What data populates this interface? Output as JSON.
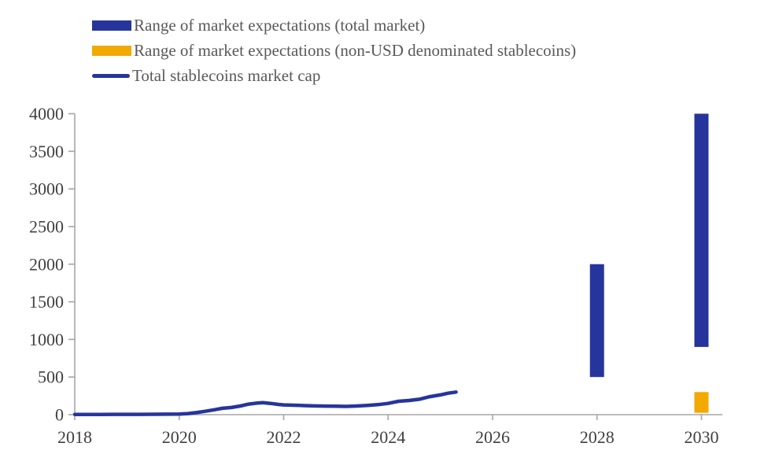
{
  "legend": {
    "items": [
      {
        "label": "Range of market expectations (total market)",
        "swatch": "bar",
        "color": "#26359c"
      },
      {
        "label": "Range of market expectations (non-USD denominated stablecoins)",
        "swatch": "bar",
        "color": "#f2a900"
      },
      {
        "label": "Total stablecoins market cap",
        "swatch": "line",
        "color": "#26359c"
      }
    ]
  },
  "colors": {
    "axis": "#a6a6a6",
    "tick_label": "#404040",
    "legend_text": "#595959",
    "blue": "#26359c",
    "orange": "#f2a900",
    "background": "#ffffff"
  },
  "chart_data": {
    "type": "combo",
    "title": "",
    "xlabel": "",
    "ylabel": "",
    "grid": false,
    "legend_position": "top-left",
    "x_axis": {
      "range": [
        2018,
        2030.4
      ],
      "ticks": [
        2018,
        2020,
        2022,
        2024,
        2026,
        2028,
        2030
      ]
    },
    "y_axis": {
      "range": [
        0,
        4000
      ],
      "ticks": [
        0,
        500,
        1000,
        1500,
        2000,
        2500,
        3000,
        3500,
        4000
      ]
    },
    "series": [
      {
        "name": "Range of market expectations (total market)",
        "type": "range-bar",
        "color": "#26359c",
        "bars": [
          {
            "x": 2028,
            "low": 500,
            "high": 2000
          },
          {
            "x": 2030,
            "low": 900,
            "high": 4000
          }
        ]
      },
      {
        "name": "Range of market expectations (non-USD denominated stablecoins)",
        "type": "range-bar",
        "color": "#f2a900",
        "bars": [
          {
            "x": 2030,
            "low": 25,
            "high": 300
          }
        ]
      },
      {
        "name": "Total stablecoins market cap",
        "type": "line",
        "color": "#26359c",
        "points": [
          [
            2018.0,
            3
          ],
          [
            2018.25,
            3
          ],
          [
            2018.5,
            3
          ],
          [
            2018.75,
            4
          ],
          [
            2019.0,
            4
          ],
          [
            2019.25,
            4
          ],
          [
            2019.5,
            5
          ],
          [
            2019.75,
            6
          ],
          [
            2020.0,
            8
          ],
          [
            2020.17,
            15
          ],
          [
            2020.33,
            27
          ],
          [
            2020.5,
            45
          ],
          [
            2020.67,
            65
          ],
          [
            2020.83,
            85
          ],
          [
            2021.0,
            95
          ],
          [
            2021.17,
            115
          ],
          [
            2021.33,
            140
          ],
          [
            2021.5,
            155
          ],
          [
            2021.6,
            160
          ],
          [
            2021.75,
            150
          ],
          [
            2021.9,
            136
          ],
          [
            2022.0,
            130
          ],
          [
            2022.2,
            125
          ],
          [
            2022.4,
            120
          ],
          [
            2022.6,
            116
          ],
          [
            2022.8,
            114
          ],
          [
            2023.0,
            112
          ],
          [
            2023.2,
            110
          ],
          [
            2023.4,
            115
          ],
          [
            2023.6,
            122
          ],
          [
            2023.8,
            133
          ],
          [
            2024.0,
            150
          ],
          [
            2024.2,
            178
          ],
          [
            2024.4,
            188
          ],
          [
            2024.6,
            205
          ],
          [
            2024.8,
            240
          ],
          [
            2025.0,
            262
          ],
          [
            2025.15,
            285
          ],
          [
            2025.3,
            300
          ]
        ]
      }
    ]
  }
}
